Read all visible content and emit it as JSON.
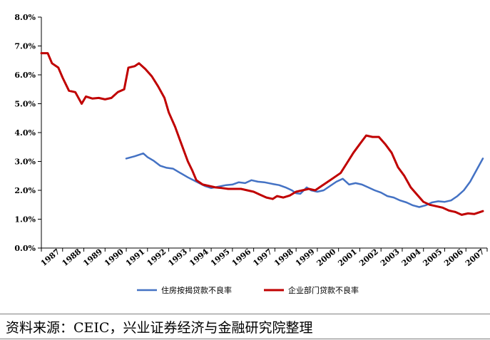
{
  "chart_data": {
    "type": "line",
    "x_labels": [
      "1987",
      "1988",
      "1989",
      "1990",
      "1991",
      "1992",
      "1993",
      "1994",
      "1995",
      "1996",
      "1997",
      "1998",
      "1999",
      "2000",
      "2001",
      "2002",
      "2003",
      "2004",
      "2005",
      "2006",
      "2007"
    ],
    "y_ticks": [
      "0.0%",
      "1.0%",
      "2.0%",
      "3.0%",
      "4.0%",
      "5.0%",
      "6.0%",
      "7.0%",
      "8.0%"
    ],
    "ylim": [
      0,
      8
    ],
    "xlim": [
      1987,
      2008
    ],
    "grid": false,
    "legend_position": "bottom",
    "series": [
      {
        "name": "住房按揭贷款不良率",
        "color": "#4472C4",
        "points": [
          [
            1991.0,
            3.1
          ],
          [
            1991.4,
            3.18
          ],
          [
            1991.8,
            3.28
          ],
          [
            1992.0,
            3.15
          ],
          [
            1992.3,
            3.02
          ],
          [
            1992.6,
            2.85
          ],
          [
            1992.9,
            2.78
          ],
          [
            1993.2,
            2.75
          ],
          [
            1993.5,
            2.62
          ],
          [
            1993.9,
            2.45
          ],
          [
            1994.3,
            2.3
          ],
          [
            1994.7,
            2.15
          ],
          [
            1995.0,
            2.08
          ],
          [
            1995.3,
            2.12
          ],
          [
            1995.7,
            2.18
          ],
          [
            1996.0,
            2.2
          ],
          [
            1996.3,
            2.28
          ],
          [
            1996.6,
            2.25
          ],
          [
            1996.9,
            2.35
          ],
          [
            1997.2,
            2.3
          ],
          [
            1997.5,
            2.28
          ],
          [
            1997.9,
            2.22
          ],
          [
            1998.2,
            2.18
          ],
          [
            1998.5,
            2.1
          ],
          [
            1998.8,
            2.0
          ],
          [
            1999.0,
            1.9
          ],
          [
            1999.2,
            1.88
          ],
          [
            1999.5,
            2.1
          ],
          [
            1999.7,
            2.0
          ],
          [
            2000.0,
            1.95
          ],
          [
            2000.3,
            2.0
          ],
          [
            2000.6,
            2.15
          ],
          [
            2000.9,
            2.3
          ],
          [
            2001.2,
            2.4
          ],
          [
            2001.5,
            2.2
          ],
          [
            2001.8,
            2.25
          ],
          [
            2002.1,
            2.2
          ],
          [
            2002.4,
            2.1
          ],
          [
            2002.7,
            2.0
          ],
          [
            2003.0,
            1.92
          ],
          [
            2003.3,
            1.8
          ],
          [
            2003.6,
            1.75
          ],
          [
            2003.9,
            1.65
          ],
          [
            2004.2,
            1.58
          ],
          [
            2004.5,
            1.48
          ],
          [
            2004.8,
            1.42
          ],
          [
            2005.1,
            1.48
          ],
          [
            2005.4,
            1.58
          ],
          [
            2005.7,
            1.62
          ],
          [
            2006.0,
            1.6
          ],
          [
            2006.3,
            1.65
          ],
          [
            2006.6,
            1.8
          ],
          [
            2006.9,
            2.0
          ],
          [
            2007.2,
            2.3
          ],
          [
            2007.5,
            2.7
          ],
          [
            2007.8,
            3.1
          ]
        ]
      },
      {
        "name": "企业部门贷款不良率",
        "color": "#C00000",
        "points": [
          [
            1987.0,
            6.75
          ],
          [
            1987.3,
            6.75
          ],
          [
            1987.5,
            6.4
          ],
          [
            1987.8,
            6.25
          ],
          [
            1988.0,
            5.9
          ],
          [
            1988.3,
            5.45
          ],
          [
            1988.6,
            5.4
          ],
          [
            1988.9,
            5.0
          ],
          [
            1989.1,
            5.25
          ],
          [
            1989.4,
            5.18
          ],
          [
            1989.7,
            5.2
          ],
          [
            1990.0,
            5.15
          ],
          [
            1990.3,
            5.2
          ],
          [
            1990.6,
            5.4
          ],
          [
            1990.9,
            5.5
          ],
          [
            1991.1,
            6.25
          ],
          [
            1991.4,
            6.3
          ],
          [
            1991.6,
            6.4
          ],
          [
            1991.9,
            6.2
          ],
          [
            1992.2,
            5.95
          ],
          [
            1992.5,
            5.6
          ],
          [
            1992.8,
            5.2
          ],
          [
            1993.0,
            4.7
          ],
          [
            1993.3,
            4.2
          ],
          [
            1993.6,
            3.6
          ],
          [
            1993.9,
            3.0
          ],
          [
            1994.1,
            2.7
          ],
          [
            1994.3,
            2.35
          ],
          [
            1994.6,
            2.2
          ],
          [
            1994.9,
            2.15
          ],
          [
            1995.2,
            2.1
          ],
          [
            1995.5,
            2.08
          ],
          [
            1995.8,
            2.05
          ],
          [
            1996.1,
            2.05
          ],
          [
            1996.4,
            2.05
          ],
          [
            1996.7,
            2.0
          ],
          [
            1997.0,
            1.95
          ],
          [
            1997.3,
            1.85
          ],
          [
            1997.6,
            1.75
          ],
          [
            1997.9,
            1.7
          ],
          [
            1998.1,
            1.8
          ],
          [
            1998.4,
            1.75
          ],
          [
            1998.7,
            1.82
          ],
          [
            1999.0,
            1.95
          ],
          [
            1999.3,
            2.0
          ],
          [
            1999.6,
            2.05
          ],
          [
            1999.9,
            2.0
          ],
          [
            2000.2,
            2.15
          ],
          [
            2000.5,
            2.3
          ],
          [
            2000.8,
            2.45
          ],
          [
            2001.1,
            2.6
          ],
          [
            2001.4,
            2.95
          ],
          [
            2001.7,
            3.3
          ],
          [
            2002.0,
            3.6
          ],
          [
            2002.3,
            3.9
          ],
          [
            2002.6,
            3.85
          ],
          [
            2002.9,
            3.85
          ],
          [
            2003.2,
            3.6
          ],
          [
            2003.5,
            3.3
          ],
          [
            2003.8,
            2.8
          ],
          [
            2004.1,
            2.5
          ],
          [
            2004.4,
            2.1
          ],
          [
            2004.7,
            1.85
          ],
          [
            2005.0,
            1.6
          ],
          [
            2005.3,
            1.5
          ],
          [
            2005.6,
            1.45
          ],
          [
            2005.9,
            1.4
          ],
          [
            2006.2,
            1.3
          ],
          [
            2006.5,
            1.25
          ],
          [
            2006.8,
            1.15
          ],
          [
            2007.1,
            1.2
          ],
          [
            2007.4,
            1.18
          ],
          [
            2007.8,
            1.28
          ]
        ]
      }
    ]
  },
  "source_text": "资料来源：CEIC，兴业证券经济与金融研究院整理"
}
